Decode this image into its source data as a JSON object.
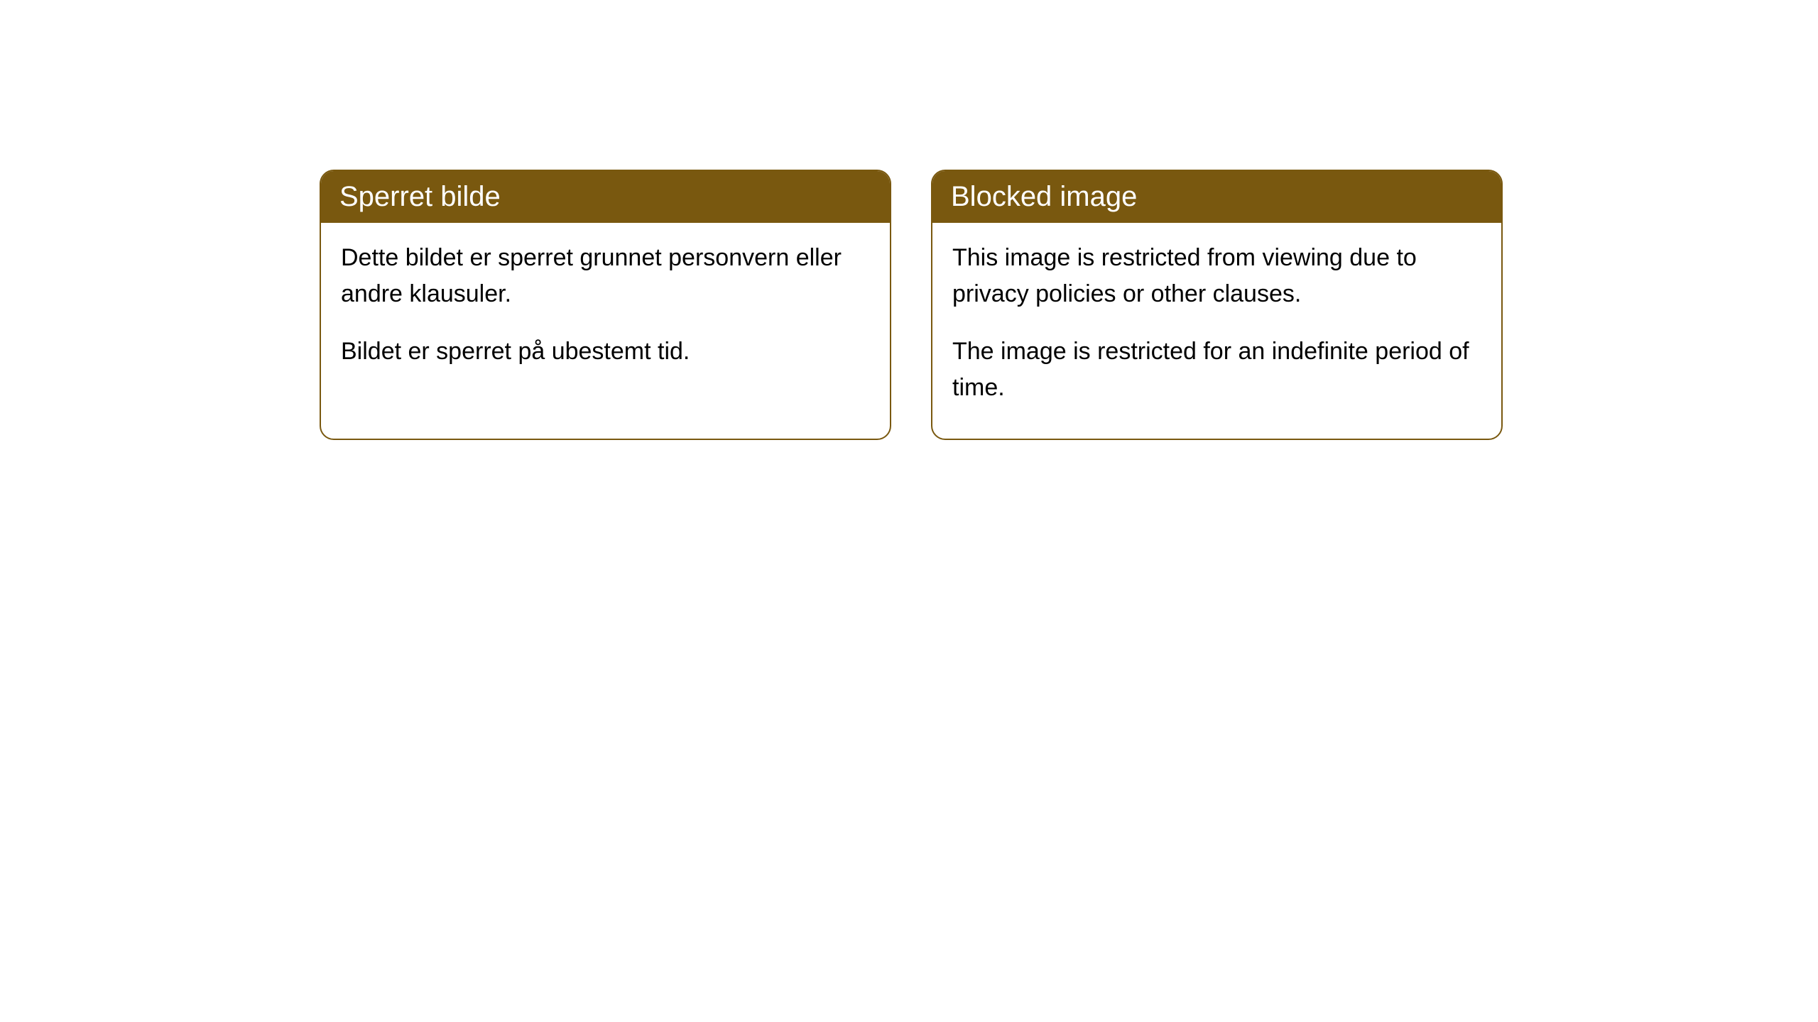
{
  "cards": [
    {
      "title": "Sperret bilde",
      "paragraph1": "Dette bildet er sperret grunnet personvern eller andre klausuler.",
      "paragraph2": "Bildet er sperret på ubestemt tid."
    },
    {
      "title": "Blocked image",
      "paragraph1": "This image is restricted from viewing due to privacy policies or other clauses.",
      "paragraph2": "The image is restricted for an indefinite period of time."
    }
  ],
  "style": {
    "header_bg_color": "#79580f",
    "header_text_color": "#ffffff",
    "border_color": "#79580f",
    "body_bg_color": "#ffffff",
    "body_text_color": "#000000",
    "border_radius": 20,
    "header_fontsize": 40,
    "body_fontsize": 34
  }
}
